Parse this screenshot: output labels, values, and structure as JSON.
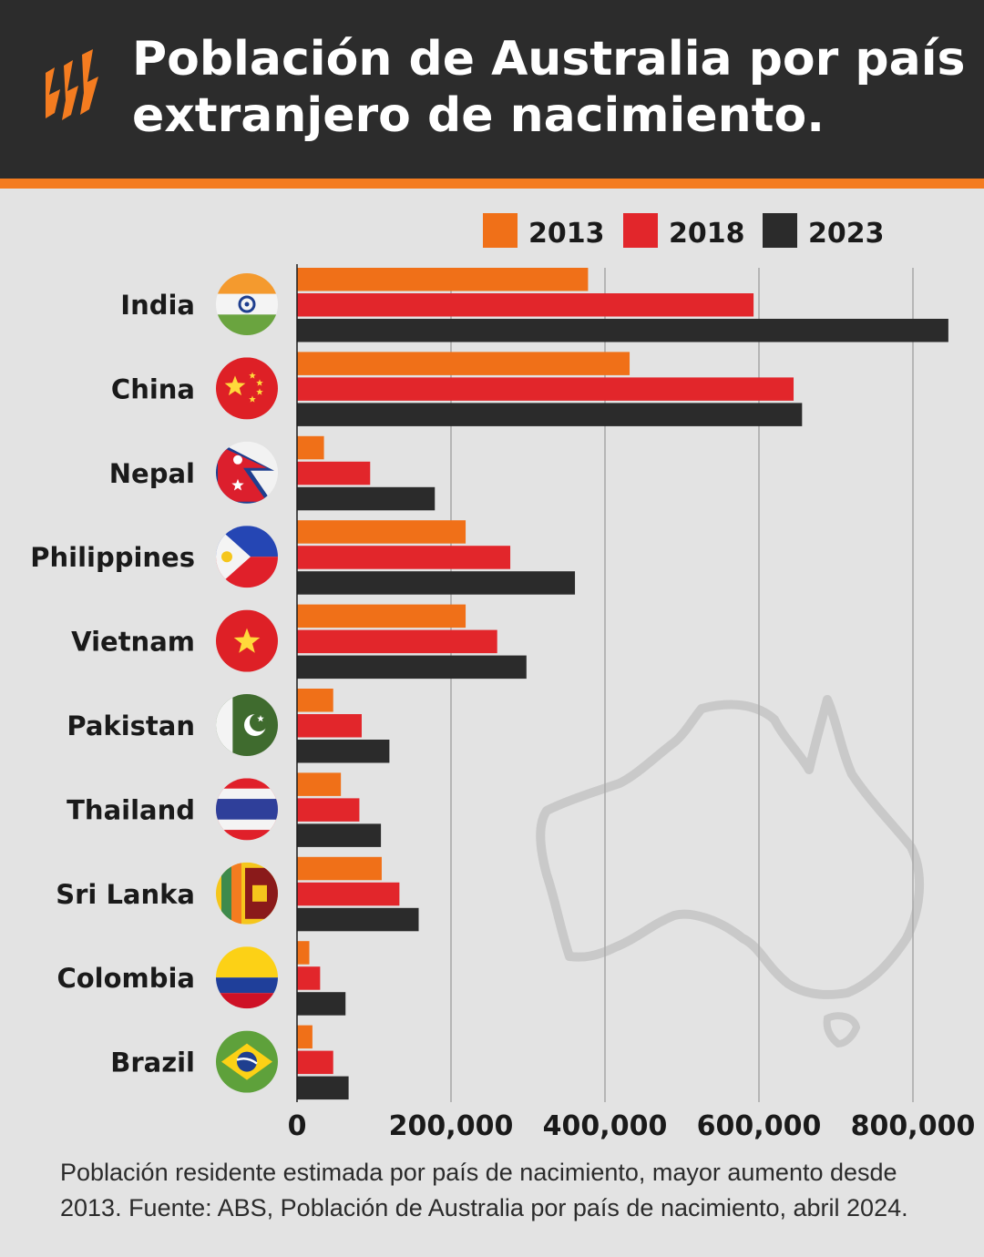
{
  "header": {
    "title": "Población de Australia por país extranjero de nacimiento.",
    "logo_icon": "sbs-logo-icon"
  },
  "caption": "Población residente estimada por país de nacimiento, mayor aumento desde 2013. Fuente: ABS, Población de Australia por país de nacimiento, abril 2024.",
  "colors": {
    "header_bg": "#2c2c2c",
    "accent": "#f47c20",
    "background": "#e3e3e3",
    "series_2013": "#f07018",
    "series_2018": "#e2262b",
    "series_2023": "#2b2b2b"
  },
  "chart_data": {
    "type": "bar",
    "orientation": "horizontal",
    "title": "Población de Australia por país extranjero de nacimiento.",
    "xlabel": "",
    "ylabel": "",
    "xlim": [
      0,
      850000
    ],
    "x_ticks": [
      0,
      200000,
      400000,
      600000,
      800000
    ],
    "x_tick_labels": [
      "0",
      "200,000",
      "400,000",
      "600,000",
      "800,000"
    ],
    "grid": true,
    "legend_position": "top-right",
    "categories": [
      "India",
      "China",
      "Nepal",
      "Philippines",
      "Vietnam",
      "Pakistan",
      "Thailand",
      "Sri Lanka",
      "Colombia",
      "Brazil"
    ],
    "category_icons": [
      "india-flag-icon",
      "china-flag-icon",
      "nepal-flag-icon",
      "philippines-flag-icon",
      "vietnam-flag-icon",
      "pakistan-flag-icon",
      "thailand-flag-icon",
      "sri-lanka-flag-icon",
      "colombia-flag-icon",
      "brazil-flag-icon"
    ],
    "series": [
      {
        "name": "2013",
        "color": "#f07018",
        "values": [
          378000,
          432000,
          35000,
          219000,
          219000,
          47000,
          57000,
          110000,
          16000,
          20000
        ]
      },
      {
        "name": "2018",
        "color": "#e2262b",
        "values": [
          593000,
          645000,
          95000,
          277000,
          260000,
          84000,
          81000,
          133000,
          30000,
          47000
        ]
      },
      {
        "name": "2023",
        "color": "#2b2b2b",
        "values": [
          846000,
          656000,
          179000,
          361000,
          298000,
          120000,
          109000,
          158000,
          63000,
          67000
        ]
      }
    ],
    "background_decoration": "australia-map-outline"
  }
}
